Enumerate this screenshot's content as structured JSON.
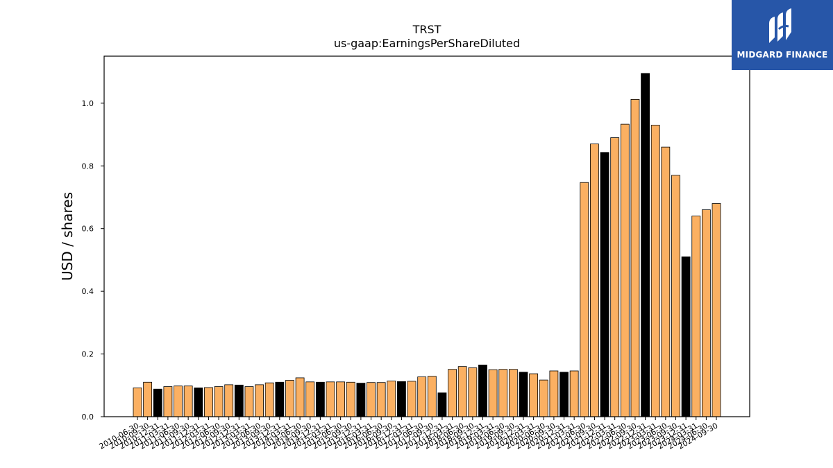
{
  "logo": {
    "text": "MIDGARD FINANCE"
  },
  "colors": {
    "bar_default": "#fbb062",
    "bar_highlight": "#000000",
    "edge": "#000000"
  },
  "chart_data": {
    "type": "bar",
    "title": "TRST",
    "subtitle": "us-gaap:EarningsPerShareDiluted",
    "ylabel": "USD / shares",
    "xlabel": "",
    "ylim": [
      0,
      1.15
    ],
    "yticks": [
      0.0,
      0.2,
      0.4,
      0.6,
      0.8,
      1.0
    ],
    "ytick_labels": [
      "0.0",
      "0.2",
      "0.4",
      "0.6",
      "0.8",
      "1.0"
    ],
    "grid": false,
    "categories": [
      "2010-06-30",
      "2010-09-30",
      "2010-12-31",
      "2011-03-31",
      "2011-06-30",
      "2011-09-30",
      "2011-12-31",
      "2012-03-31",
      "2012-06-30",
      "2012-09-30",
      "2012-12-31",
      "2013-03-31",
      "2013-06-30",
      "2013-09-30",
      "2013-12-31",
      "2014-03-31",
      "2014-06-30",
      "2014-09-30",
      "2014-12-31",
      "2015-03-31",
      "2015-06-30",
      "2015-09-30",
      "2015-12-31",
      "2016-03-31",
      "2016-06-30",
      "2016-09-30",
      "2016-12-31",
      "2017-03-31",
      "2017-06-30",
      "2017-09-30",
      "2017-12-31",
      "2018-03-31",
      "2018-06-30",
      "2018-09-30",
      "2018-12-31",
      "2019-03-31",
      "2019-06-30",
      "2019-09-30",
      "2019-12-31",
      "2020-03-31",
      "2020-06-30",
      "2020-09-30",
      "2020-12-31",
      "2021-03-31",
      "2021-06-30",
      "2021-09-30",
      "2021-12-31",
      "2022-03-31",
      "2022-06-30",
      "2022-09-30",
      "2022-12-31",
      "2023-03-31",
      "2023-06-30",
      "2023-09-30",
      "2023-12-31",
      "2024-03-31",
      "2024-06-30",
      "2024-09-30"
    ],
    "values": [
      0.092,
      0.11,
      0.088,
      0.096,
      0.098,
      0.098,
      0.092,
      0.093,
      0.096,
      0.102,
      0.101,
      0.096,
      0.102,
      0.108,
      0.11,
      0.116,
      0.124,
      0.111,
      0.11,
      0.111,
      0.111,
      0.11,
      0.107,
      0.109,
      0.109,
      0.114,
      0.112,
      0.113,
      0.127,
      0.129,
      0.076,
      0.151,
      0.16,
      0.156,
      0.165,
      0.15,
      0.151,
      0.151,
      0.142,
      0.137,
      0.117,
      0.146,
      0.142,
      0.146,
      0.747,
      0.87,
      0.843,
      0.89,
      0.933,
      1.012,
      1.095,
      0.93,
      0.86,
      0.77,
      0.51,
      0.64,
      0.66,
      0.68
    ],
    "highlight": [
      false,
      false,
      true,
      false,
      false,
      false,
      true,
      false,
      false,
      false,
      true,
      false,
      false,
      false,
      true,
      false,
      false,
      false,
      true,
      false,
      false,
      false,
      true,
      false,
      false,
      false,
      true,
      false,
      false,
      false,
      true,
      false,
      false,
      false,
      true,
      false,
      false,
      false,
      true,
      false,
      false,
      false,
      true,
      false,
      false,
      false,
      true,
      false,
      false,
      false,
      true,
      false,
      false,
      false,
      true,
      false,
      false,
      false
    ]
  }
}
